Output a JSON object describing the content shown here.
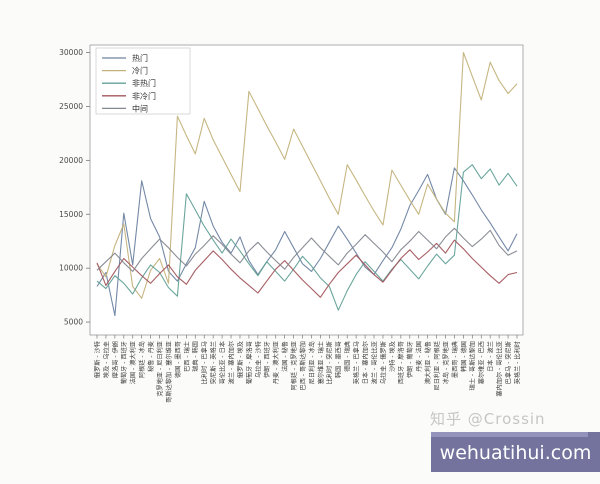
{
  "watermark": {
    "zhihu": "知乎 @Crossin",
    "badge": "wehuatihui.com"
  },
  "chart_data": {
    "type": "line",
    "title": "",
    "xlabel": "",
    "ylabel": "",
    "grid": false,
    "legend_position": "upper left",
    "ylim": [
      3800,
      30700
    ],
    "yticks": [
      5000,
      10000,
      15000,
      20000,
      25000,
      30000
    ],
    "categories": [
      "俄罗斯 - 沙特",
      "埃及 - 乌拉圭",
      "摩洛哥 - 伊朗",
      "葡萄牙 - 西班牙",
      "法国 - 澳大利亚",
      "阿根廷 - 冰岛",
      "秘鲁 - 丹麦",
      "克罗地亚 - 尼日利亚",
      "哥斯达黎加 - 塞尔维亚",
      "德国 - 墨西哥",
      "巴西 - 瑞士",
      "瑞典 - 韩国",
      "比利时 - 巴拿马",
      "突尼斯 - 英格兰",
      "哥伦比亚 - 日本",
      "波兰 - 塞内加尔",
      "俄罗斯 - 埃及",
      "葡萄牙 - 摩洛哥",
      "乌拉圭 - 沙特",
      "伊朗 - 西班牙",
      "丹麦 - 澳大利亚",
      "法国 - 秘鲁",
      "阿根廷 - 克罗地亚",
      "巴西 - 哥斯达黎加",
      "尼日利亚 - 冰岛",
      "塞尔维亚 - 瑞士",
      "比利时 - 突尼斯",
      "韩国 - 墨西哥",
      "德国 - 瑞典",
      "英格兰 - 巴拿马",
      "日本 - 塞内加尔",
      "波兰 - 哥伦比亚",
      "乌拉圭 - 俄罗斯",
      "沙特 - 埃及",
      "西班牙 - 摩洛哥",
      "伊朗 - 葡萄牙",
      "丹麦 - 法国",
      "澳大利亚 - 秘鲁",
      "尼日利亚 - 阿根廷",
      "冰岛 - 克罗地亚",
      "墨西哥 - 瑞典",
      "韩国 - 德国",
      "瑞士 - 哥斯达黎加",
      "塞尔维亚 - 巴西",
      "日本 - 波兰",
      "塞内加尔 - 哥伦比亚",
      "巴拿马 - 突尼斯",
      "英格兰 - 比利时"
    ],
    "series": [
      {
        "name": "热门",
        "color": "#6d83a1",
        "values": [
          8300,
          9600,
          5600,
          15100,
          10300,
          18100,
          14600,
          12900,
          9700,
          8800,
          10400,
          11900,
          16200,
          13900,
          12400,
          11400,
          12900,
          10700,
          9400,
          10600,
          11700,
          13400,
          11900,
          10400,
          9700,
          10900,
          12400,
          13900,
          12700,
          11400,
          10100,
          9400,
          10700,
          11900,
          13600,
          15800,
          17200,
          18700,
          16400,
          15000,
          19300,
          18100,
          16800,
          15400,
          14200,
          12900,
          11600,
          13200
        ]
      },
      {
        "name": "冷门",
        "color": "#c3b27b",
        "values": [
          10400,
          9200,
          12100,
          14100,
          8300,
          7200,
          9800,
          10900,
          8600,
          24100,
          22300,
          20600,
          23900,
          21900,
          20300,
          18700,
          17100,
          26400,
          24800,
          23200,
          21700,
          20100,
          22900,
          21300,
          19700,
          18100,
          16500,
          15000,
          19600,
          18200,
          16700,
          15300,
          14000,
          19100,
          17700,
          16300,
          15000,
          17800,
          16400,
          15100,
          14300,
          30000,
          27800,
          25600,
          29100,
          27400,
          26200,
          27100
        ]
      },
      {
        "name": "非热门",
        "color": "#63a197",
        "values": [
          8800,
          8100,
          9300,
          8600,
          7600,
          9100,
          10300,
          9600,
          8200,
          7400,
          16900,
          15400,
          13900,
          12600,
          11400,
          12700,
          11600,
          10400,
          9300,
          10600,
          9700,
          8800,
          9900,
          11100,
          10200,
          9100,
          8300,
          6100,
          7900,
          9400,
          10600,
          9700,
          8800,
          9900,
          10800,
          9900,
          9000,
          10200,
          11300,
          10400,
          11200,
          18900,
          19600,
          18300,
          19200,
          17700,
          18800,
          17600
        ]
      },
      {
        "name": "非冷门",
        "color": "#a2565c",
        "values": [
          10500,
          8400,
          9700,
          10900,
          10100,
          9300,
          8600,
          9500,
          10300,
          9200,
          8500,
          9800,
          10700,
          11600,
          10800,
          9900,
          9100,
          8400,
          7700,
          8800,
          9900,
          10700,
          9800,
          8900,
          8100,
          7300,
          8500,
          9600,
          10400,
          11200,
          10300,
          9400,
          8700,
          9800,
          10900,
          11700,
          10800,
          11500,
          12300,
          11400,
          12600,
          11800,
          10900,
          10100,
          9300,
          8600,
          9400,
          9600
        ]
      },
      {
        "name": "中间",
        "color": "#84878f",
        "values": [
          9800,
          10600,
          11400,
          10500,
          9700,
          10900,
          11800,
          12700,
          11900,
          11000,
          10200,
          11300,
          12100,
          13000,
          12200,
          11300,
          10500,
          11600,
          12400,
          11500,
          10700,
          9900,
          11000,
          11900,
          12800,
          11900,
          11100,
          10300,
          11400,
          12200,
          13100,
          12300,
          11500,
          10600,
          11700,
          12500,
          13400,
          12600,
          11800,
          12900,
          13700,
          12800,
          12000,
          12700,
          13500,
          12100,
          11200,
          11600
        ]
      }
    ]
  }
}
